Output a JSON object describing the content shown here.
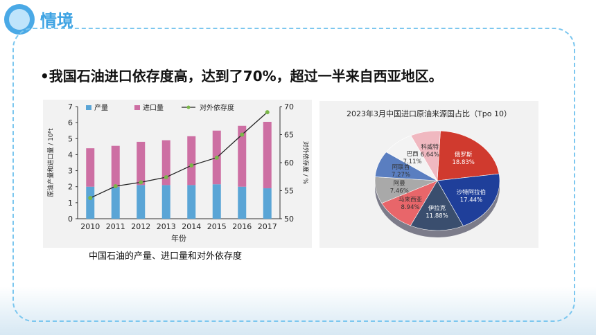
{
  "header": {
    "title": "情境",
    "icon": "lightbulb-head-icon"
  },
  "bullet": {
    "text": "•我国石油进口依存度高，达到了70%，超过一半来自西亚地区。"
  },
  "caption": "中国石油的产量、进口量和对外依存度",
  "chart_data": [
    {
      "type": "bar",
      "categories": [
        "2010",
        "2011",
        "2012",
        "2013",
        "2014",
        "2015",
        "2016",
        "2017"
      ],
      "series": [
        {
          "name": "产量",
          "values": [
            2.0,
            2.0,
            2.1,
            2.1,
            2.1,
            2.15,
            2.0,
            1.9
          ],
          "color": "#5aa5d6"
        },
        {
          "name": "进口量",
          "values": [
            2.4,
            2.55,
            2.7,
            2.8,
            3.05,
            3.35,
            3.8,
            4.15
          ],
          "color": "#cd6fa3"
        },
        {
          "name": "对外依存度",
          "values": [
            53.7,
            55.8,
            56.5,
            57.4,
            59.5,
            60.9,
            65.0,
            69.0
          ],
          "color": "#7ab648",
          "axis": "right"
        }
      ],
      "xlabel": "年份",
      "ylabel": "原油产量和进口量 / 10⁸t",
      "ylabel_right": "对外依存度 / %",
      "ylim": [
        0,
        7
      ],
      "ylim_right": [
        50,
        70
      ],
      "yticks": [
        "0",
        "1",
        "2",
        "3",
        "4",
        "5",
        "6",
        "7"
      ],
      "yticks_right": [
        "50",
        "55",
        "60",
        "65",
        "70"
      ]
    },
    {
      "type": "pie",
      "title": "2023年3月中国进口原油来源国占比（Tpo 10）",
      "slices": [
        {
          "label": "俄罗斯",
          "pct": "18.83%",
          "value": 18.83,
          "color": "#d03a2e"
        },
        {
          "label": "沙特阿拉伯",
          "pct": "17.44%",
          "value": 17.44,
          "color": "#1f3f9a"
        },
        {
          "label": "伊拉克",
          "pct": "11.88%",
          "value": 11.88,
          "color": "#3a4e6e"
        },
        {
          "label": "马来西亚",
          "pct": "8.94%",
          "value": 8.94,
          "color": "#e8666a"
        },
        {
          "label": "阿曼",
          "pct": "7.46%",
          "value": 7.46,
          "color": "#a9a9a9"
        },
        {
          "label": "阿联酋",
          "pct": "7.27%",
          "value": 7.27,
          "color": "#5a7ec0"
        },
        {
          "label": "巴西",
          "pct": "7.11%",
          "value": 7.11,
          "color": "#f3f3f3"
        },
        {
          "label": "科威特",
          "pct": "6.64%",
          "value": 6.64,
          "color": "#f0b8c0"
        }
      ]
    }
  ]
}
